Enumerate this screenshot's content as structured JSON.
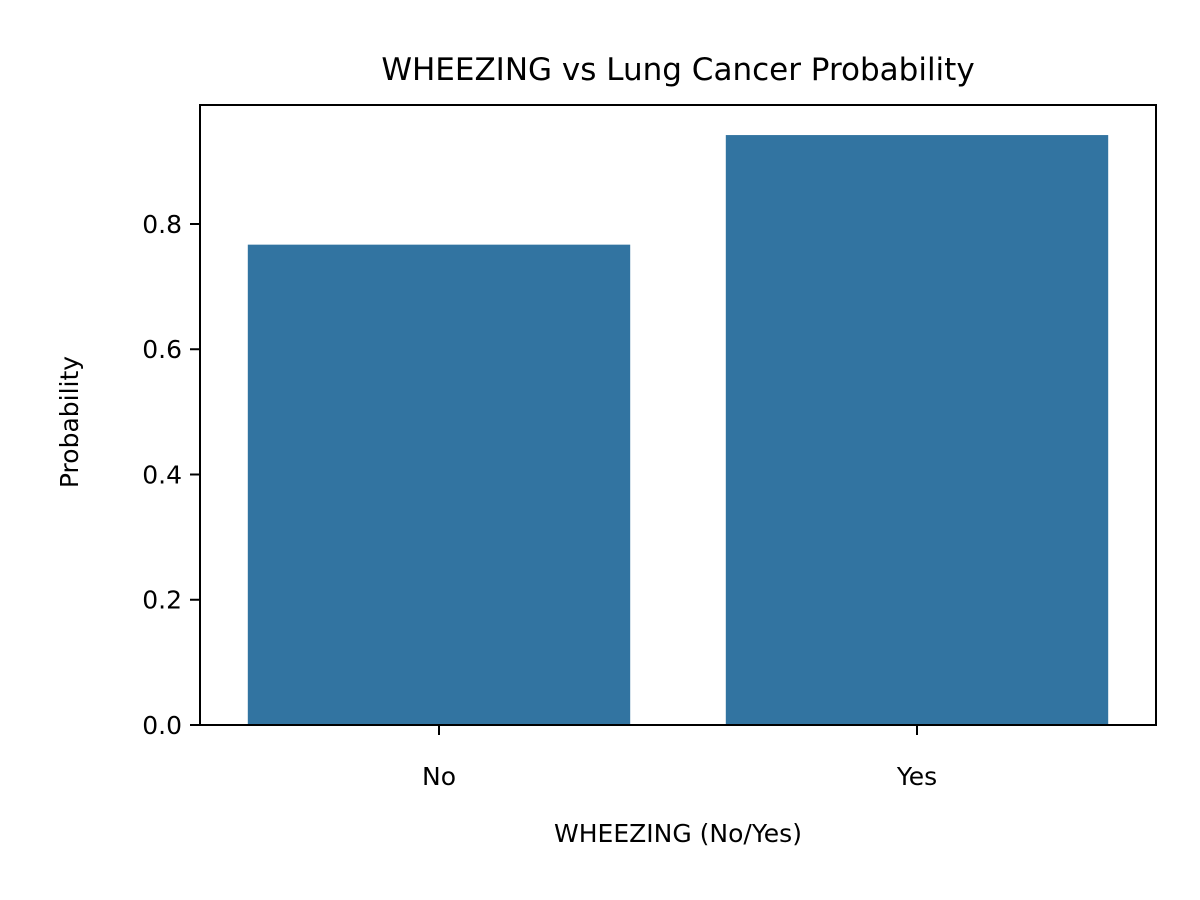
{
  "chart_data": {
    "type": "bar",
    "title": "WHEEZING vs Lung Cancer Probability",
    "xlabel": "WHEEZING (No/Yes)",
    "ylabel": "Probability",
    "categories": [
      "No",
      "Yes"
    ],
    "values": [
      0.767,
      0.942
    ],
    "ylim": [
      0,
      0.99
    ],
    "yticks": [
      0.0,
      0.2,
      0.4,
      0.6,
      0.8
    ],
    "ytick_labels": [
      "0.0",
      "0.2",
      "0.4",
      "0.6",
      "0.8"
    ],
    "bar_color": "#3274a1",
    "grid": false,
    "legend": "none"
  }
}
